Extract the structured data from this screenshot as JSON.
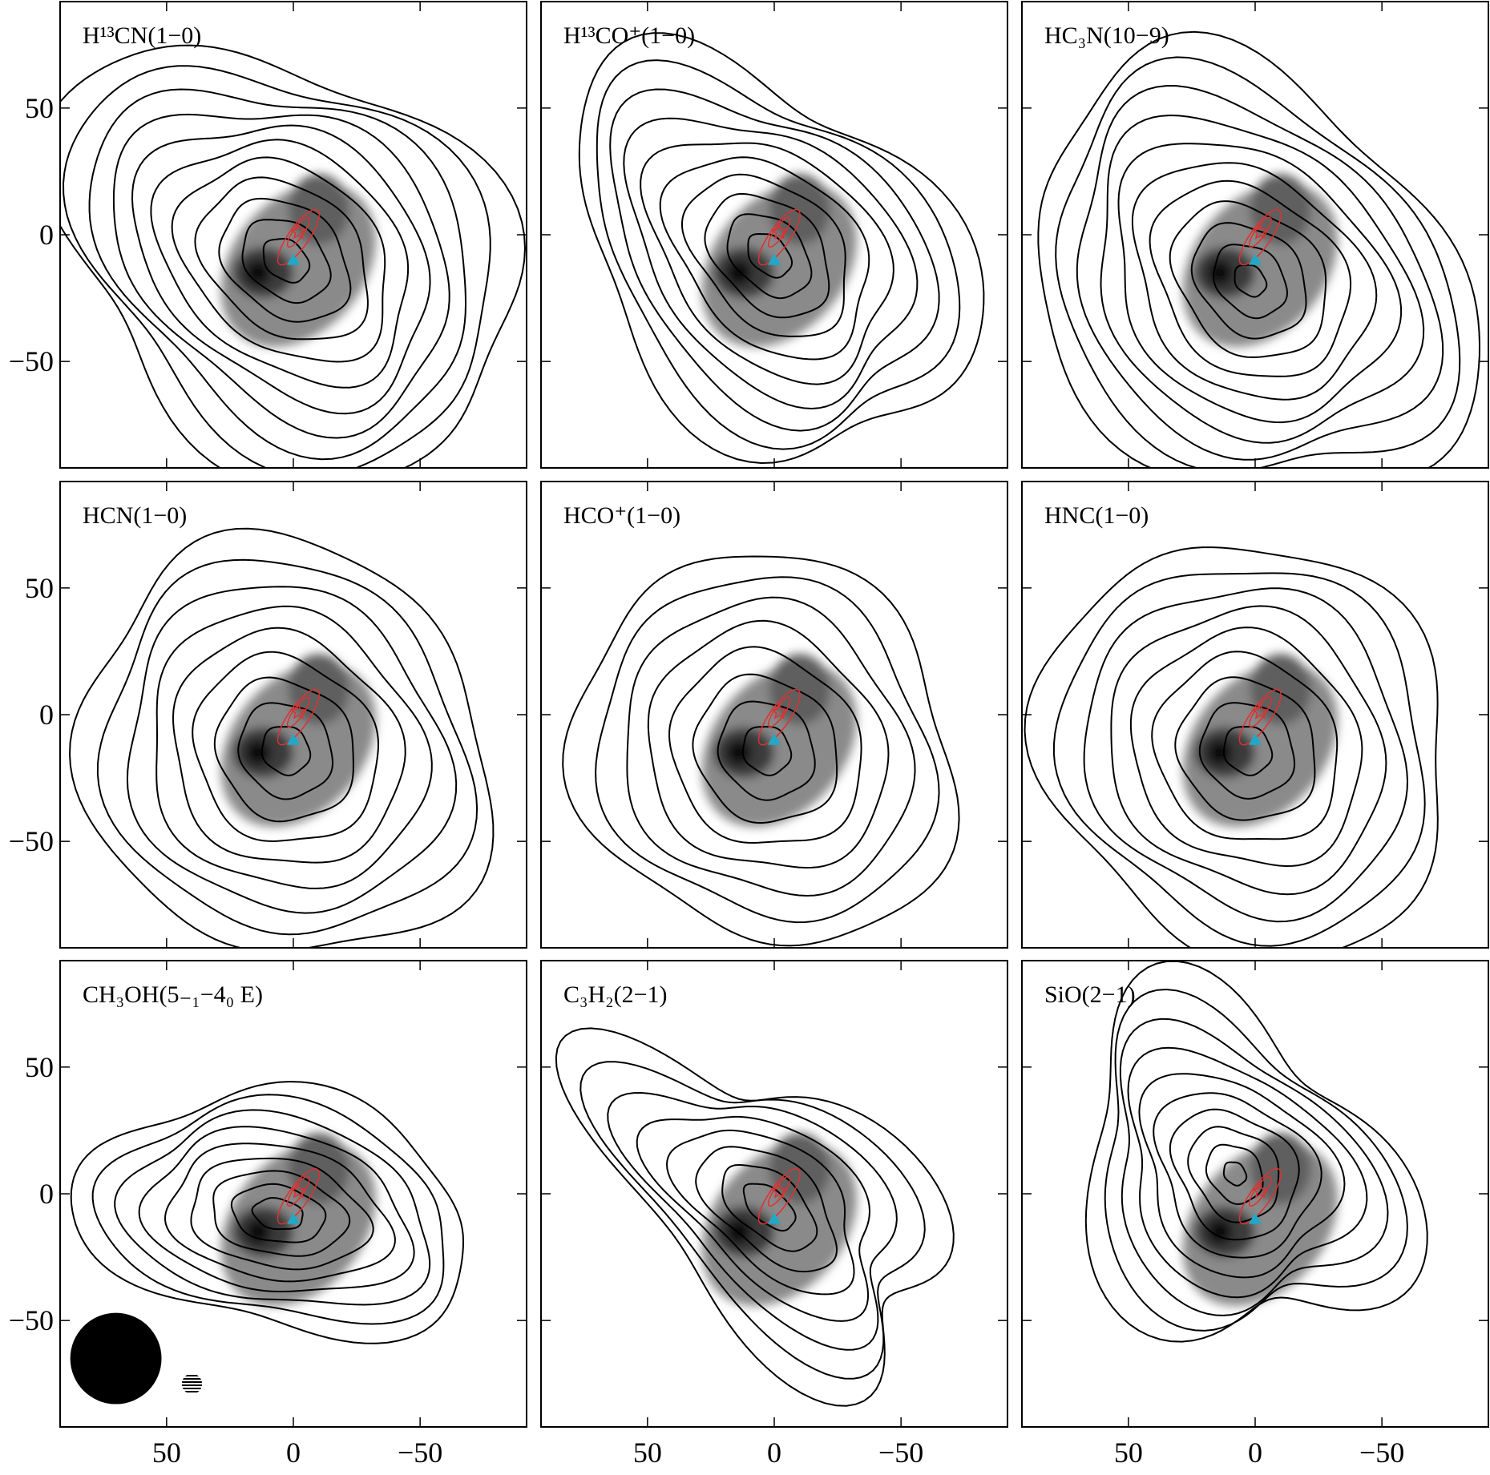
{
  "chart_data": {
    "type": "contour-grid",
    "titles": [
      "H¹³CN(1−0)",
      "H¹³CO⁺(1−0)",
      "HC₃N(10−9)",
      "HCN(1−0)",
      "HCO⁺(1−0)",
      "HNC(1−0)",
      "CH₃OH(5₋₁−4₀ E)",
      "C₃H₂(2−1)",
      "SiO(2−1)"
    ],
    "xlim": [
      92,
      -92
    ],
    "ylim": [
      -92,
      92
    ],
    "xticks": [
      50,
      0,
      {
        "value": -50,
        "label": "−50"
      }
    ],
    "yticks": [
      {
        "value": -50,
        "label": "−50"
      },
      0,
      50
    ]
  }
}
